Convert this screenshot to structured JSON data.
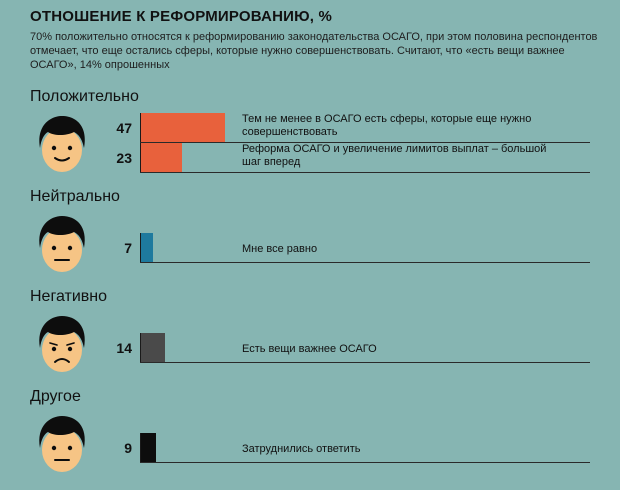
{
  "header": {
    "title": "ОТНОШЕНИЕ К РЕФОРМИРОВАНИЮ, %",
    "subtitle": "70% положительно относятся к реформированию законодательства ОСАГО, при этом половина респондентов отмечает, что еще остались сферы, которые нужно совершенствовать. Считают, что «есть вещи важнее ОСАГО», 14% опрошенных"
  },
  "colors": {
    "background": "#86b5b2",
    "positive": "#e8613c",
    "neutral": "#1e7a9e",
    "negative": "#4a4a4a",
    "other": "#0d0d0d"
  },
  "icons": [
    "smiling-face-icon",
    "neutral-face-icon",
    "sad-face-icon",
    "neutral-face-icon"
  ],
  "chart_data": {
    "type": "bar",
    "title": "ОТНОШЕНИЕ К РЕФОРМИРОВАНИЮ, %",
    "xlim": [
      0,
      60
    ],
    "groups": [
      {
        "label": "Положительно",
        "items": [
          {
            "value": 47,
            "description": "Тем не менее в ОСАГО есть сферы, которые еще нужно совершенствовать"
          },
          {
            "value": 23,
            "description": "Реформа ОСАГО и увеличение лимитов выплат – большой шаг вперед"
          }
        ]
      },
      {
        "label": "Нейтрально",
        "items": [
          {
            "value": 7,
            "description": "Мне все равно"
          }
        ]
      },
      {
        "label": "Негативно",
        "items": [
          {
            "value": 14,
            "description": "Есть вещи важнее ОСАГО"
          }
        ]
      },
      {
        "label": "Другое",
        "items": [
          {
            "value": 9,
            "description": "Затруднились ответить"
          }
        ]
      }
    ]
  }
}
